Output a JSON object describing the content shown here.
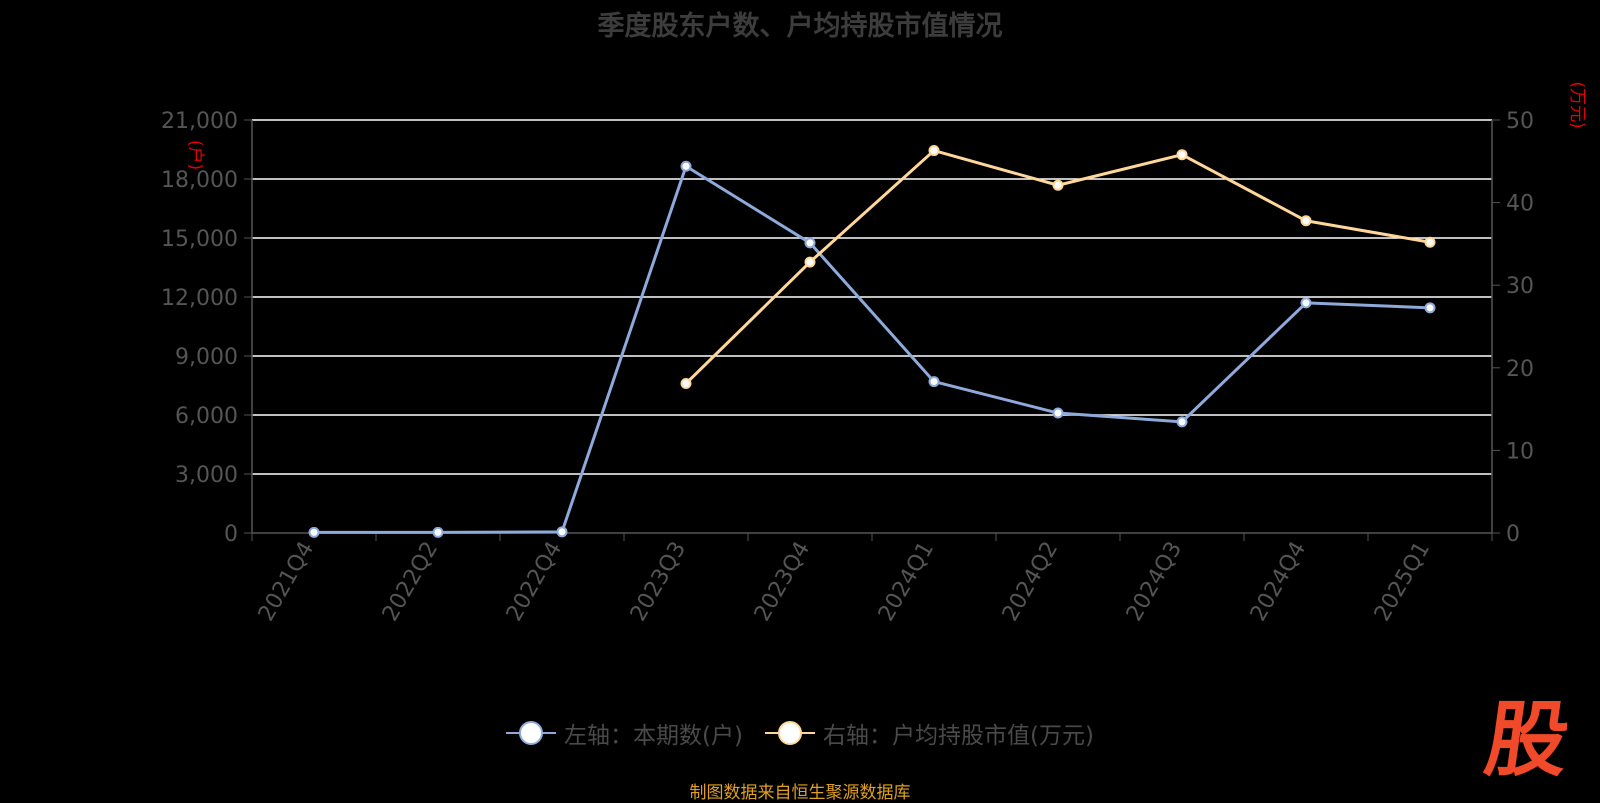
{
  "chart_data": {
    "type": "line",
    "title": "季度股东户数、户均持股市值情况",
    "categories": [
      "2021Q4",
      "2022Q2",
      "2022Q4",
      "2023Q3",
      "2023Q4",
      "2024Q1",
      "2024Q2",
      "2024Q3",
      "2024Q4",
      "2025Q1"
    ],
    "series": [
      {
        "name": "左轴：本期数(户)",
        "axis": "left",
        "color": "#8eaadb",
        "values": [
          30,
          30,
          60,
          18650,
          14750,
          7700,
          6100,
          5650,
          11700,
          11450
        ]
      },
      {
        "name": "右轴：户均持股市值(万元)",
        "axis": "right",
        "color": "#ffd79b",
        "values": [
          null,
          null,
          null,
          18.1,
          32.8,
          46.3,
          42.1,
          45.8,
          37.8,
          35.2
        ]
      }
    ],
    "left_axis": {
      "label": "(户)",
      "ticks": [
        0,
        3000,
        6000,
        9000,
        12000,
        15000,
        18000,
        21000
      ],
      "ylim": [
        0,
        21000
      ]
    },
    "right_axis": {
      "label": "(万元)",
      "ticks": [
        0,
        10,
        20,
        30,
        40,
        50
      ],
      "ylim": [
        0,
        50
      ]
    },
    "grid": true,
    "legend_position": "bottom-center"
  },
  "source_note": "制图数据来自恒生聚源数据库",
  "watermark": "股",
  "colors": {
    "title": "#3c3c3c",
    "axis_text": "#555555",
    "axis_label": "#e60000",
    "grid": "#ffffff",
    "source": "#e0a020",
    "watermark": "#f04a2a"
  }
}
